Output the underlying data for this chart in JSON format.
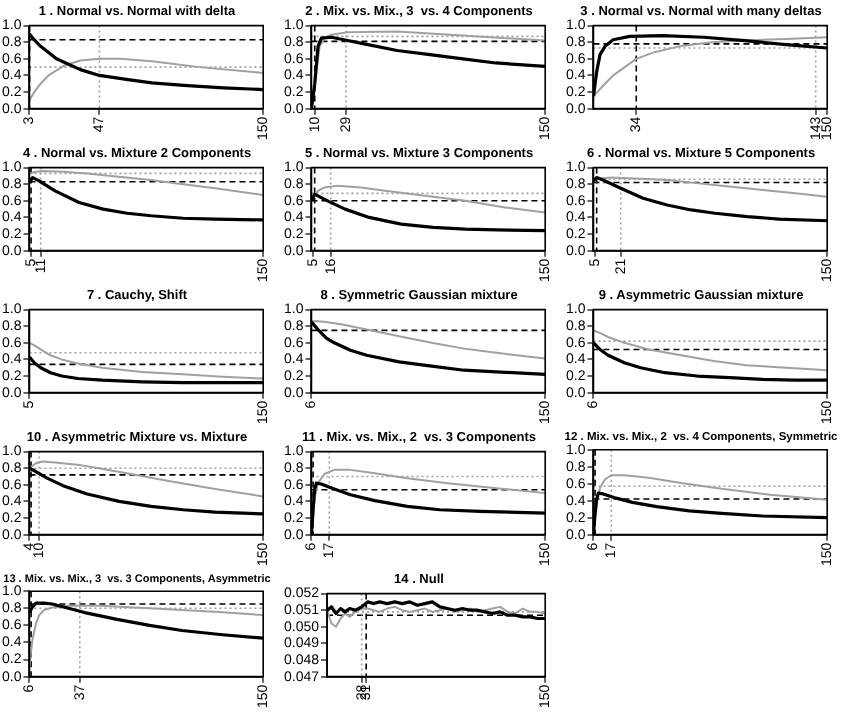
{
  "chart_data": [
    {
      "type": "line",
      "title": "1 . Normal vs. Normal with delta",
      "xlim": [
        3,
        150
      ],
      "xticks": [
        3,
        47,
        150
      ],
      "ylim": [
        0,
        1
      ],
      "yticks": [
        {
          "value": 0,
          "label": "0.0"
        },
        {
          "value": 0.2,
          "label": "0.2"
        },
        {
          "value": 0.4,
          "label": "0.4"
        },
        {
          "value": 0.6,
          "label": "0.6"
        },
        {
          "value": 0.8,
          "label": "0.8"
        },
        {
          "value": 1,
          "label": "1.0"
        }
      ],
      "grid": false,
      "legend": false,
      "series": [
        {
          "color": "#000000",
          "x": [
            3,
            5,
            10,
            20,
            35,
            47,
            65,
            80,
            100,
            125,
            150
          ],
          "values": [
            0.9,
            0.85,
            0.75,
            0.6,
            0.47,
            0.4,
            0.35,
            0.31,
            0.28,
            0.25,
            0.23
          ]
        },
        {
          "color": "#a0a0a0",
          "x": [
            3,
            6,
            10,
            15,
            25,
            35,
            47,
            60,
            80,
            110,
            150
          ],
          "values": [
            0.1,
            0.2,
            0.3,
            0.4,
            0.52,
            0.58,
            0.6,
            0.6,
            0.57,
            0.5,
            0.43
          ]
        }
      ],
      "ref_lines": [
        {
          "axis": "y",
          "value": 0.83,
          "color": "#000000",
          "line_style": "dashed"
        },
        {
          "axis": "y",
          "value": 0.5,
          "color": "#a0a0a0",
          "line_style": "dotted"
        },
        {
          "axis": "x",
          "value": 3,
          "color": "#000000",
          "line_style": "dashed"
        },
        {
          "axis": "x",
          "value": 47,
          "color": "#a0a0a0",
          "line_style": "dotted"
        }
      ]
    },
    {
      "type": "line",
      "title": "2 . Mix. vs. Mix., 3  vs. 4 Components",
      "xlim": [
        8,
        150
      ],
      "xticks": [
        10,
        29,
        150
      ],
      "ylim": [
        0,
        1
      ],
      "yticks": [
        {
          "value": 0,
          "label": "0.0"
        },
        {
          "value": 0.2,
          "label": "0.2"
        },
        {
          "value": 0.4,
          "label": "0.4"
        },
        {
          "value": 0.6,
          "label": "0.6"
        },
        {
          "value": 0.8,
          "label": "0.8"
        },
        {
          "value": 1,
          "label": "1.0"
        }
      ],
      "grid": false,
      "legend": false,
      "series": [
        {
          "color": "#000000",
          "x": [
            8,
            10,
            12,
            14,
            20,
            30,
            40,
            60,
            80,
            100,
            120,
            150
          ],
          "values": [
            0,
            0.3,
            0.75,
            0.85,
            0.86,
            0.82,
            0.78,
            0.7,
            0.65,
            0.6,
            0.55,
            0.51
          ]
        },
        {
          "color": "#a0a0a0",
          "x": [
            8,
            10,
            13,
            16,
            20,
            30,
            60,
            100,
            150
          ],
          "values": [
            0,
            0.3,
            0.75,
            0.85,
            0.89,
            0.92,
            0.93,
            0.88,
            0.82
          ]
        }
      ],
      "ref_lines": [
        {
          "axis": "y",
          "value": 0.81,
          "color": "#000000",
          "line_style": "dashed"
        },
        {
          "axis": "y",
          "value": 0.87,
          "color": "#a0a0a0",
          "line_style": "dotted"
        },
        {
          "axis": "x",
          "value": 10,
          "color": "#000000",
          "line_style": "dashed"
        },
        {
          "axis": "x",
          "value": 29,
          "color": "#a0a0a0",
          "line_style": "dotted"
        }
      ]
    },
    {
      "type": "line",
      "title": "3 . Normal vs. Normal with many deltas",
      "xlim": [
        8,
        150
      ],
      "xticks": [
        34,
        143,
        150
      ],
      "ylim": [
        0,
        1
      ],
      "yticks": [
        {
          "value": 0,
          "label": "0.0"
        },
        {
          "value": 0.2,
          "label": "0.2"
        },
        {
          "value": 0.4,
          "label": "0.4"
        },
        {
          "value": 0.6,
          "label": "0.6"
        },
        {
          "value": 0.8,
          "label": "0.8"
        },
        {
          "value": 1,
          "label": "1.0"
        }
      ],
      "grid": false,
      "legend": false,
      "series": [
        {
          "color": "#000000",
          "x": [
            8,
            10,
            12,
            15,
            20,
            30,
            50,
            75,
            100,
            125,
            150
          ],
          "values": [
            0.15,
            0.45,
            0.65,
            0.75,
            0.83,
            0.87,
            0.88,
            0.86,
            0.82,
            0.77,
            0.73
          ]
        },
        {
          "color": "#a0a0a0",
          "x": [
            8,
            15,
            20,
            27,
            34,
            45,
            60,
            80,
            100,
            125,
            150
          ],
          "values": [
            0.15,
            0.3,
            0.4,
            0.5,
            0.6,
            0.68,
            0.75,
            0.8,
            0.82,
            0.84,
            0.86
          ]
        }
      ],
      "ref_lines": [
        {
          "axis": "y",
          "value": 0.78,
          "color": "#000000",
          "line_style": "dashed"
        },
        {
          "axis": "y",
          "value": 0.73,
          "color": "#a0a0a0",
          "line_style": "dotted"
        },
        {
          "axis": "x",
          "value": 34,
          "color": "#000000",
          "line_style": "dashed"
        },
        {
          "axis": "x",
          "value": 143,
          "color": "#a0a0a0",
          "line_style": "dotted"
        }
      ]
    },
    {
      "type": "line",
      "title": "4 . Normal vs. Mixture 2 Components",
      "xlim": [
        4,
        150
      ],
      "xticks": [
        5,
        11,
        150
      ],
      "ylim": [
        0,
        1
      ],
      "yticks": [
        {
          "value": 0,
          "label": "0.0"
        },
        {
          "value": 0.2,
          "label": "0.2"
        },
        {
          "value": 0.4,
          "label": "0.4"
        },
        {
          "value": 0.6,
          "label": "0.6"
        },
        {
          "value": 0.8,
          "label": "0.8"
        },
        {
          "value": 1,
          "label": "1.0"
        }
      ],
      "grid": false,
      "legend": false,
      "series": [
        {
          "color": "#000000",
          "x": [
            4,
            6,
            10,
            20,
            35,
            50,
            65,
            80,
            100,
            120,
            150
          ],
          "values": [
            0.82,
            0.88,
            0.84,
            0.72,
            0.58,
            0.5,
            0.45,
            0.42,
            0.39,
            0.38,
            0.37
          ]
        },
        {
          "color": "#a0a0a0",
          "x": [
            4,
            8,
            12,
            25,
            40,
            60,
            80,
            100,
            120,
            150
          ],
          "values": [
            0.93,
            0.95,
            0.96,
            0.95,
            0.93,
            0.89,
            0.85,
            0.8,
            0.75,
            0.67
          ]
        }
      ],
      "ref_lines": [
        {
          "axis": "y",
          "value": 0.83,
          "color": "#000000",
          "line_style": "dashed"
        },
        {
          "axis": "y",
          "value": 0.93,
          "color": "#a0a0a0",
          "line_style": "dotted"
        },
        {
          "axis": "x",
          "value": 5,
          "color": "#000000",
          "line_style": "dashed"
        },
        {
          "axis": "x",
          "value": 11,
          "color": "#a0a0a0",
          "line_style": "dotted"
        }
      ]
    },
    {
      "type": "line",
      "title": "5 . Normal vs. Mixture 3 Components",
      "xlim": [
        4,
        150
      ],
      "xticks": [
        5,
        16,
        150
      ],
      "ylim": [
        0,
        1
      ],
      "yticks": [
        {
          "value": 0,
          "label": "0.0"
        },
        {
          "value": 0.2,
          "label": "0.2"
        },
        {
          "value": 0.4,
          "label": "0.4"
        },
        {
          "value": 0.6,
          "label": "0.6"
        },
        {
          "value": 0.8,
          "label": "0.8"
        },
        {
          "value": 1,
          "label": "1.0"
        }
      ],
      "grid": false,
      "legend": false,
      "series": [
        {
          "color": "#000000",
          "x": [
            4,
            6,
            8,
            15,
            25,
            40,
            60,
            80,
            100,
            120,
            150
          ],
          "values": [
            0.6,
            0.68,
            0.66,
            0.59,
            0.5,
            0.4,
            0.32,
            0.28,
            0.26,
            0.25,
            0.24
          ]
        },
        {
          "color": "#a0a0a0",
          "x": [
            4,
            8,
            12,
            20,
            35,
            50,
            75,
            100,
            125,
            150
          ],
          "values": [
            0.6,
            0.72,
            0.76,
            0.78,
            0.76,
            0.72,
            0.66,
            0.6,
            0.52,
            0.46
          ]
        }
      ],
      "ref_lines": [
        {
          "axis": "y",
          "value": 0.6,
          "color": "#000000",
          "line_style": "dashed"
        },
        {
          "axis": "y",
          "value": 0.69,
          "color": "#a0a0a0",
          "line_style": "dotted"
        },
        {
          "axis": "x",
          "value": 6,
          "color": "#000000",
          "line_style": "dashed"
        },
        {
          "axis": "x",
          "value": 16,
          "color": "#a0a0a0",
          "line_style": "dotted"
        }
      ]
    },
    {
      "type": "line",
      "title": "6 . Normal vs. Mixture 5 Components",
      "xlim": [
        4,
        150
      ],
      "xticks": [
        5,
        21,
        150
      ],
      "ylim": [
        0,
        1
      ],
      "yticks": [
        {
          "value": 0,
          "label": "0.0"
        },
        {
          "value": 0.2,
          "label": "0.2"
        },
        {
          "value": 0.4,
          "label": "0.4"
        },
        {
          "value": 0.6,
          "label": "0.6"
        },
        {
          "value": 0.8,
          "label": "0.8"
        },
        {
          "value": 1,
          "label": "1.0"
        }
      ],
      "grid": false,
      "legend": false,
      "series": [
        {
          "color": "#000000",
          "x": [
            4,
            6,
            10,
            20,
            35,
            50,
            65,
            80,
            100,
            120,
            150
          ],
          "values": [
            0.84,
            0.88,
            0.85,
            0.76,
            0.63,
            0.55,
            0.49,
            0.45,
            0.41,
            0.38,
            0.36
          ]
        },
        {
          "color": "#a0a0a0",
          "x": [
            4,
            8,
            15,
            30,
            50,
            70,
            90,
            110,
            130,
            150
          ],
          "values": [
            0.85,
            0.87,
            0.88,
            0.87,
            0.85,
            0.81,
            0.77,
            0.73,
            0.69,
            0.65
          ]
        }
      ],
      "ref_lines": [
        {
          "axis": "y",
          "value": 0.82,
          "color": "#000000",
          "line_style": "dashed"
        },
        {
          "axis": "y",
          "value": 0.86,
          "color": "#a0a0a0",
          "line_style": "dotted"
        },
        {
          "axis": "x",
          "value": 6,
          "color": "#000000",
          "line_style": "dashed"
        },
        {
          "axis": "x",
          "value": 21,
          "color": "#a0a0a0",
          "line_style": "dotted"
        }
      ]
    },
    {
      "type": "line",
      "title": "7 . Cauchy, Shift",
      "xlim": [
        5,
        150
      ],
      "xticks": [
        5,
        150
      ],
      "ylim": [
        0,
        1
      ],
      "yticks": [
        {
          "value": 0,
          "label": "0.0"
        },
        {
          "value": 0.2,
          "label": "0.2"
        },
        {
          "value": 0.4,
          "label": "0.4"
        },
        {
          "value": 0.6,
          "label": "0.6"
        },
        {
          "value": 0.8,
          "label": "0.8"
        },
        {
          "value": 1,
          "label": "1.0"
        }
      ],
      "grid": false,
      "legend": false,
      "series": [
        {
          "color": "#000000",
          "x": [
            5,
            8,
            12,
            18,
            25,
            35,
            50,
            75,
            100,
            125,
            150
          ],
          "values": [
            0.43,
            0.36,
            0.3,
            0.24,
            0.2,
            0.17,
            0.15,
            0.13,
            0.12,
            0.12,
            0.12
          ]
        },
        {
          "color": "#a0a0a0",
          "x": [
            5,
            8,
            12,
            18,
            25,
            35,
            50,
            75,
            100,
            125,
            150
          ],
          "values": [
            0.6,
            0.57,
            0.52,
            0.45,
            0.4,
            0.35,
            0.3,
            0.25,
            0.22,
            0.19,
            0.17
          ]
        }
      ],
      "ref_lines": [
        {
          "axis": "y",
          "value": 0.34,
          "color": "#000000",
          "line_style": "dashed"
        },
        {
          "axis": "y",
          "value": 0.48,
          "color": "#a0a0a0",
          "line_style": "dotted"
        }
      ]
    },
    {
      "type": "line",
      "title": "8 . Symmetric Gaussian mixture",
      "xlim": [
        6,
        150
      ],
      "xticks": [
        6,
        150
      ],
      "ylim": [
        0,
        1
      ],
      "yticks": [
        {
          "value": 0,
          "label": "0.0"
        },
        {
          "value": 0.2,
          "label": "0.2"
        },
        {
          "value": 0.4,
          "label": "0.4"
        },
        {
          "value": 0.6,
          "label": "0.6"
        },
        {
          "value": 0.8,
          "label": "0.8"
        },
        {
          "value": 1,
          "label": "1.0"
        }
      ],
      "grid": false,
      "legend": false,
      "series": [
        {
          "color": "#000000",
          "x": [
            6,
            10,
            15,
            20,
            30,
            40,
            60,
            80,
            100,
            120,
            150
          ],
          "values": [
            0.85,
            0.76,
            0.66,
            0.6,
            0.51,
            0.45,
            0.37,
            0.32,
            0.27,
            0.25,
            0.22
          ]
        },
        {
          "color": "#a0a0a0",
          "x": [
            6,
            10,
            15,
            25,
            40,
            60,
            80,
            100,
            120,
            150
          ],
          "values": [
            0.86,
            0.86,
            0.85,
            0.82,
            0.76,
            0.68,
            0.6,
            0.53,
            0.48,
            0.41
          ]
        }
      ],
      "ref_lines": [
        {
          "axis": "y",
          "value": 0.75,
          "color": "#000000",
          "line_style": "dashed"
        }
      ]
    },
    {
      "type": "line",
      "title": "9 . Asymmetric Gaussian mixture",
      "xlim": [
        6,
        150
      ],
      "xticks": [
        6,
        150
      ],
      "ylim": [
        0,
        1
      ],
      "yticks": [
        {
          "value": 0,
          "label": "0.0"
        },
        {
          "value": 0.2,
          "label": "0.2"
        },
        {
          "value": 0.4,
          "label": "0.4"
        },
        {
          "value": 0.6,
          "label": "0.6"
        },
        {
          "value": 0.8,
          "label": "0.8"
        },
        {
          "value": 1,
          "label": "1.0"
        }
      ],
      "grid": false,
      "legend": false,
      "series": [
        {
          "color": "#000000",
          "x": [
            6,
            10,
            15,
            25,
            35,
            50,
            70,
            90,
            110,
            130,
            150
          ],
          "values": [
            0.6,
            0.52,
            0.45,
            0.36,
            0.3,
            0.24,
            0.2,
            0.18,
            0.16,
            0.15,
            0.15
          ]
        },
        {
          "color": "#a0a0a0",
          "x": [
            6,
            10,
            15,
            25,
            40,
            60,
            80,
            100,
            125,
            150
          ],
          "values": [
            0.75,
            0.72,
            0.67,
            0.6,
            0.52,
            0.45,
            0.38,
            0.33,
            0.3,
            0.27
          ]
        }
      ],
      "ref_lines": [
        {
          "axis": "y",
          "value": 0.52,
          "color": "#000000",
          "line_style": "dashed"
        },
        {
          "axis": "y",
          "value": 0.62,
          "color": "#a0a0a0",
          "line_style": "dotted"
        }
      ]
    },
    {
      "type": "line",
      "title": "10 . Asymmetric Mixture vs. Mixture",
      "xlim": [
        4,
        150
      ],
      "xticks": [
        4,
        10,
        150
      ],
      "ylim": [
        0,
        1
      ],
      "yticks": [
        {
          "value": 0,
          "label": "0.0"
        },
        {
          "value": 0.2,
          "label": "0.2"
        },
        {
          "value": 0.4,
          "label": "0.4"
        },
        {
          "value": 0.6,
          "label": "0.6"
        },
        {
          "value": 0.8,
          "label": "0.8"
        },
        {
          "value": 1,
          "label": "1.0"
        }
      ],
      "grid": false,
      "legend": false,
      "series": [
        {
          "color": "#000000",
          "x": [
            4,
            8,
            15,
            25,
            40,
            60,
            80,
            100,
            120,
            150
          ],
          "values": [
            0.8,
            0.76,
            0.68,
            0.59,
            0.49,
            0.4,
            0.34,
            0.3,
            0.27,
            0.25
          ]
        },
        {
          "color": "#a0a0a0",
          "x": [
            4,
            8,
            12,
            20,
            35,
            50,
            70,
            90,
            120,
            150
          ],
          "values": [
            0.8,
            0.86,
            0.88,
            0.87,
            0.84,
            0.79,
            0.72,
            0.65,
            0.55,
            0.46
          ]
        }
      ],
      "ref_lines": [
        {
          "axis": "y",
          "value": 0.72,
          "color": "#000000",
          "line_style": "dashed"
        },
        {
          "axis": "y",
          "value": 0.8,
          "color": "#a0a0a0",
          "line_style": "dotted"
        },
        {
          "axis": "x",
          "value": 5,
          "color": "#000000",
          "line_style": "dashed"
        },
        {
          "axis": "x",
          "value": 10,
          "color": "#a0a0a0",
          "line_style": "dotted"
        }
      ]
    },
    {
      "type": "line",
      "title": "11 . Mix. vs. Mix., 2  vs. 3 Components",
      "xlim": [
        6,
        150
      ],
      "xticks": [
        6,
        17,
        150
      ],
      "ylim": [
        0,
        1
      ],
      "yticks": [
        {
          "value": 0,
          "label": "0.0"
        },
        {
          "value": 0.2,
          "label": "0.2"
        },
        {
          "value": 0.4,
          "label": "0.4"
        },
        {
          "value": 0.6,
          "label": "0.6"
        },
        {
          "value": 0.8,
          "label": "0.8"
        },
        {
          "value": 1,
          "label": "1.0"
        }
      ],
      "grid": false,
      "legend": false,
      "series": [
        {
          "color": "#000000",
          "x": [
            6,
            7,
            8,
            9,
            12,
            20,
            30,
            45,
            65,
            85,
            110,
            150
          ],
          "values": [
            0,
            0.3,
            0.55,
            0.62,
            0.61,
            0.55,
            0.48,
            0.41,
            0.34,
            0.3,
            0.28,
            0.26
          ]
        },
        {
          "color": "#a0a0a0",
          "x": [
            6,
            7,
            8,
            10,
            14,
            20,
            30,
            45,
            65,
            90,
            120,
            150
          ],
          "values": [
            0,
            0.2,
            0.45,
            0.62,
            0.73,
            0.78,
            0.78,
            0.74,
            0.68,
            0.62,
            0.56,
            0.5
          ]
        }
      ],
      "ref_lines": [
        {
          "axis": "y",
          "value": 0.54,
          "color": "#000000",
          "line_style": "dashed"
        },
        {
          "axis": "y",
          "value": 0.7,
          "color": "#a0a0a0",
          "line_style": "dotted"
        },
        {
          "axis": "x",
          "value": 7,
          "color": "#000000",
          "line_style": "dashed"
        },
        {
          "axis": "x",
          "value": 17,
          "color": "#a0a0a0",
          "line_style": "dotted"
        }
      ]
    },
    {
      "type": "line",
      "title": "12 . Mix. vs. Mix., 2  vs. 4 Components, Symmetric",
      "xlim": [
        6,
        150
      ],
      "xticks": [
        6,
        17,
        150
      ],
      "ylim": [
        0,
        1
      ],
      "yticks": [
        {
          "value": 0,
          "label": "0.0"
        },
        {
          "value": 0.2,
          "label": "0.2"
        },
        {
          "value": 0.4,
          "label": "0.4"
        },
        {
          "value": 0.6,
          "label": "0.6"
        },
        {
          "value": 0.8,
          "label": "0.8"
        },
        {
          "value": 1,
          "label": "1.0"
        }
      ],
      "grid": false,
      "legend": false,
      "series": [
        {
          "color": "#000000",
          "x": [
            6,
            7,
            8,
            9,
            12,
            20,
            30,
            45,
            65,
            85,
            110,
            150
          ],
          "values": [
            0,
            0.25,
            0.42,
            0.49,
            0.48,
            0.43,
            0.38,
            0.33,
            0.28,
            0.25,
            0.22,
            0.2
          ]
        },
        {
          "color": "#a0a0a0",
          "x": [
            6,
            7,
            8,
            10,
            13,
            17,
            25,
            40,
            60,
            85,
            115,
            150
          ],
          "values": [
            0.05,
            0.2,
            0.38,
            0.55,
            0.65,
            0.7,
            0.7,
            0.67,
            0.61,
            0.54,
            0.47,
            0.41
          ]
        }
      ],
      "ref_lines": [
        {
          "axis": "y",
          "value": 0.42,
          "color": "#000000",
          "line_style": "dashed"
        },
        {
          "axis": "y",
          "value": 0.57,
          "color": "#a0a0a0",
          "line_style": "dotted"
        },
        {
          "axis": "x",
          "value": 7,
          "color": "#000000",
          "line_style": "dashed"
        },
        {
          "axis": "x",
          "value": 17,
          "color": "#a0a0a0",
          "line_style": "dotted"
        }
      ]
    },
    {
      "type": "line",
      "title": "13 . Mix. vs. Mix., 3  vs. 3 Components, Asymmetric",
      "xlim": [
        6,
        150
      ],
      "xticks": [
        6,
        37,
        150
      ],
      "ylim": [
        0,
        1
      ],
      "yticks": [
        {
          "value": 0,
          "label": "0.0"
        },
        {
          "value": 0.2,
          "label": "0.2"
        },
        {
          "value": 0.4,
          "label": "0.4"
        },
        {
          "value": 0.6,
          "label": "0.6"
        },
        {
          "value": 0.8,
          "label": "0.8"
        },
        {
          "value": 1,
          "label": "1.0"
        }
      ],
      "grid": false,
      "legend": false,
      "series": [
        {
          "color": "#000000",
          "x": [
            6,
            8,
            10,
            15,
            20,
            30,
            40,
            60,
            80,
            100,
            125,
            150
          ],
          "values": [
            0.75,
            0.82,
            0.86,
            0.86,
            0.85,
            0.8,
            0.75,
            0.67,
            0.6,
            0.54,
            0.49,
            0.45
          ]
        },
        {
          "color": "#a0a0a0",
          "x": [
            6,
            7,
            8,
            10,
            12,
            15,
            20,
            30,
            50,
            80,
            120,
            150
          ],
          "values": [
            0.1,
            0.3,
            0.45,
            0.62,
            0.72,
            0.78,
            0.81,
            0.83,
            0.83,
            0.8,
            0.76,
            0.72
          ]
        }
      ],
      "ref_lines": [
        {
          "axis": "y",
          "value": 0.85,
          "color": "#000000",
          "line_style": "dashed"
        },
        {
          "axis": "y",
          "value": 0.8,
          "color": "#a0a0a0",
          "line_style": "dotted"
        },
        {
          "axis": "x",
          "value": 7,
          "color": "#000000",
          "line_style": "dashed"
        },
        {
          "axis": "x",
          "value": 37,
          "color": "#a0a0a0",
          "line_style": "dotted"
        }
      ]
    },
    {
      "type": "line",
      "title": "14 . Null",
      "xlim": [
        5,
        150
      ],
      "xticks": [
        28,
        31,
        150
      ],
      "ylim": [
        0.047,
        0.052
      ],
      "yticks": [
        0.047,
        0.048,
        0.049,
        {
          "value": 0.05,
          "label": "0.050"
        },
        0.051,
        0.052
      ],
      "grid": false,
      "legend": false,
      "series": [
        {
          "color": "#000000",
          "x": [
            5,
            8,
            11,
            14,
            17,
            20,
            24,
            28,
            32,
            36,
            40,
            45,
            50,
            55,
            60,
            65,
            70,
            75,
            80,
            85,
            90,
            95,
            100,
            105,
            110,
            115,
            120,
            125,
            130,
            135,
            140,
            145,
            150
          ],
          "values": [
            0.051,
            0.0512,
            0.0508,
            0.0511,
            0.0509,
            0.0511,
            0.051,
            0.0512,
            0.0515,
            0.0514,
            0.0515,
            0.0514,
            0.0515,
            0.0514,
            0.0515,
            0.0513,
            0.0514,
            0.0515,
            0.0512,
            0.0511,
            0.051,
            0.0511,
            0.051,
            0.051,
            0.0509,
            0.0508,
            0.0509,
            0.0507,
            0.0507,
            0.0506,
            0.0506,
            0.0505,
            0.0505
          ]
        },
        {
          "color": "#a0a0a0",
          "x": [
            5,
            8,
            11,
            14,
            17,
            20,
            24,
            28,
            32,
            36,
            40,
            45,
            50,
            55,
            60,
            65,
            70,
            75,
            80,
            85,
            90,
            95,
            100,
            105,
            110,
            115,
            120,
            125,
            130,
            135,
            140,
            145,
            150
          ],
          "values": [
            0.051,
            0.0502,
            0.05,
            0.0505,
            0.0508,
            0.0506,
            0.0509,
            0.0511,
            0.0511,
            0.051,
            0.0509,
            0.0511,
            0.0512,
            0.051,
            0.0509,
            0.051,
            0.0511,
            0.0509,
            0.051,
            0.0511,
            0.0509,
            0.051,
            0.0511,
            0.0509,
            0.051,
            0.0511,
            0.0512,
            0.0509,
            0.0508,
            0.0511,
            0.0509,
            0.0509,
            0.0508
          ]
        }
      ],
      "ref_lines": [
        {
          "axis": "y",
          "value": 0.0507,
          "color": "#000000",
          "line_style": "dashed"
        },
        {
          "axis": "y",
          "value": 0.0509,
          "color": "#a0a0a0",
          "line_style": "dotted"
        },
        {
          "axis": "x",
          "value": 31,
          "color": "#000000",
          "line_style": "dashed"
        },
        {
          "axis": "x",
          "value": 28,
          "color": "#a0a0a0",
          "line_style": "dotted"
        }
      ]
    }
  ]
}
